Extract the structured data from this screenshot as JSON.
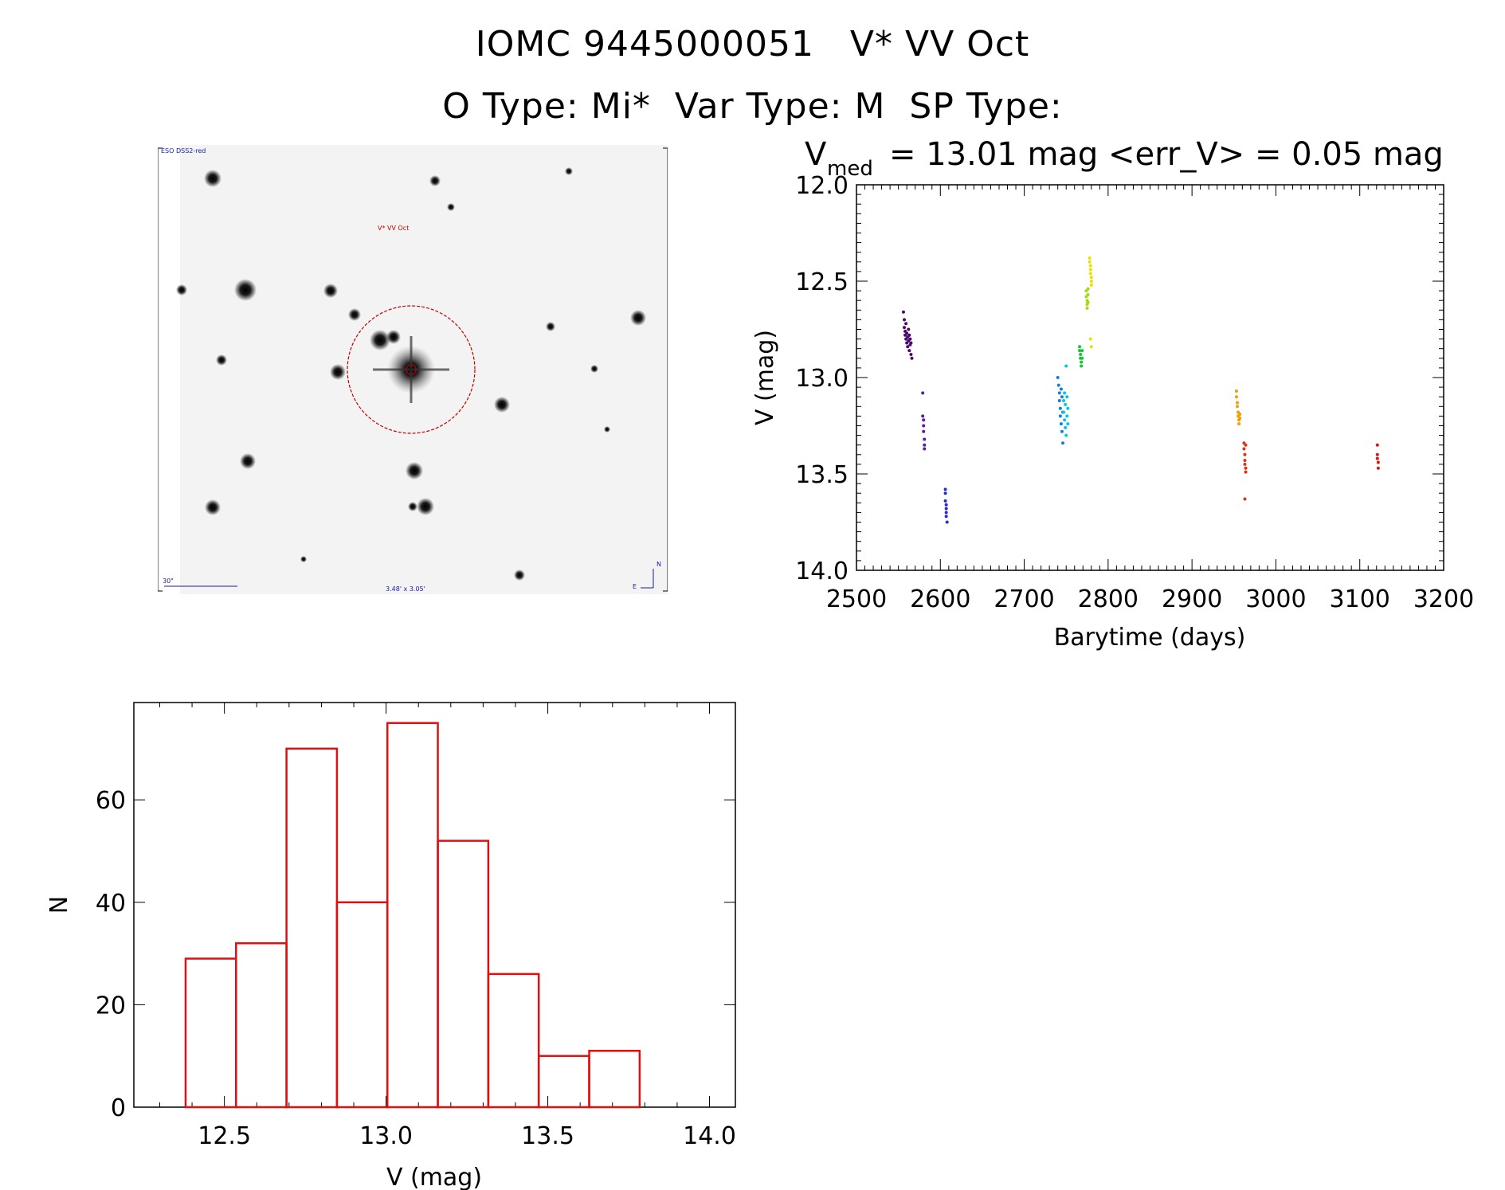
{
  "header": {
    "line1": "IOMC 9445000051   V* VV Oct",
    "line2": "O Type: Mi*  Var Type: M  SP Type:"
  },
  "finder_chart": {
    "survey_label": "ESO DSS2-red",
    "target_label": "V* VV Oct",
    "scale_label": "30\"",
    "fov_label": "3.48' x 3.05'",
    "north_label": "N",
    "east_label": "E",
    "target_circle_color": "#c00000",
    "label_color": "#1a1aa0"
  },
  "stats_title": {
    "v_symbol": "V",
    "v_subscript": "med",
    "v_med_text": "= 13.01 mag <err_V> = 0.05 mag"
  },
  "chart_data": [
    {
      "type": "scatter",
      "name": "light-curve",
      "xlabel": "Barytime (days)",
      "ylabel": "V (mag)",
      "xlim": [
        2500,
        3200
      ],
      "ylim": [
        14.0,
        12.0
      ],
      "y_inverted": true,
      "xticks": [
        2500,
        2600,
        2700,
        2800,
        2900,
        3000,
        3100,
        3200
      ],
      "xtick_labels": [
        "2500",
        "2600",
        "2700",
        "2800",
        "2900",
        "3000",
        "3100",
        "3200"
      ],
      "yticks": [
        12.0,
        12.5,
        13.0,
        13.5,
        14.0
      ],
      "ytick_labels": [
        "12.0",
        "12.5",
        "13.0",
        "13.5",
        "14.0"
      ],
      "series": [
        {
          "name": "g1",
          "color": "#4b0a6e",
          "x": [
            2556,
            2557,
            2557,
            2558,
            2558,
            2559,
            2559,
            2560,
            2560,
            2561,
            2561,
            2562,
            2562,
            2563,
            2563,
            2564,
            2564,
            2565,
            2565,
            2566
          ],
          "y": [
            12.66,
            12.7,
            12.74,
            12.76,
            12.78,
            12.72,
            12.8,
            12.77,
            12.82,
            12.79,
            12.84,
            12.75,
            12.81,
            12.78,
            12.86,
            12.8,
            12.83,
            12.82,
            12.88,
            12.9
          ]
        },
        {
          "name": "g2",
          "color": "#5a1aa0",
          "x": [
            2579,
            2579,
            2580,
            2580,
            2580,
            2581,
            2581,
            2581
          ],
          "y": [
            13.08,
            13.2,
            13.22,
            13.25,
            13.28,
            13.32,
            13.35,
            13.37
          ]
        },
        {
          "name": "g3",
          "color": "#2a2ad0",
          "x": [
            2606,
            2606,
            2606,
            2607,
            2607,
            2607,
            2607,
            2608
          ],
          "y": [
            13.58,
            13.6,
            13.64,
            13.66,
            13.68,
            13.7,
            13.72,
            13.75
          ]
        },
        {
          "name": "g4",
          "color": "#1a7ae0",
          "x": [
            2740,
            2741,
            2742,
            2742,
            2743,
            2743,
            2744,
            2744,
            2745,
            2745,
            2746,
            2746
          ],
          "y": [
            13.0,
            13.04,
            13.08,
            13.12,
            13.16,
            13.2,
            13.24,
            13.06,
            13.28,
            13.1,
            13.34,
            13.18
          ]
        },
        {
          "name": "g5",
          "color": "#00c8e0",
          "x": [
            2747,
            2747,
            2748,
            2748,
            2749,
            2749,
            2750,
            2750,
            2751,
            2751,
            2752,
            2752
          ],
          "y": [
            13.12,
            13.18,
            13.08,
            13.22,
            13.14,
            13.26,
            12.94,
            13.3,
            13.1,
            13.2,
            13.16,
            13.24
          ]
        },
        {
          "name": "g6",
          "color": "#10c830",
          "x": [
            2766,
            2766,
            2767,
            2767,
            2768,
            2768,
            2769,
            2769
          ],
          "y": [
            12.84,
            12.86,
            12.88,
            12.9,
            12.92,
            12.94,
            12.86,
            12.9
          ]
        },
        {
          "name": "g7",
          "color": "#a0e000",
          "x": [
            2774,
            2774,
            2775,
            2775,
            2775,
            2776,
            2776,
            2776
          ],
          "y": [
            12.55,
            12.58,
            12.6,
            12.62,
            12.64,
            12.54,
            12.57,
            12.61
          ]
        },
        {
          "name": "g8",
          "color": "#e8e000",
          "x": [
            2778,
            2778,
            2779,
            2779,
            2779,
            2780,
            2780,
            2780,
            2779,
            2780
          ],
          "y": [
            12.38,
            12.4,
            12.42,
            12.44,
            12.46,
            12.48,
            12.5,
            12.52,
            12.8,
            12.84
          ]
        },
        {
          "name": "g9",
          "color": "#f0a000",
          "x": [
            2953,
            2953,
            2954,
            2954,
            2955,
            2955,
            2956,
            2956,
            2957,
            2957
          ],
          "y": [
            13.07,
            13.1,
            13.13,
            13.15,
            13.18,
            13.2,
            13.22,
            13.24,
            13.19,
            13.21
          ]
        },
        {
          "name": "g10",
          "color": "#e83010",
          "x": [
            2962,
            2962,
            2963,
            2963,
            2963,
            2964,
            2964,
            2964,
            2963
          ],
          "y": [
            13.34,
            13.37,
            13.4,
            13.43,
            13.45,
            13.47,
            13.49,
            13.35,
            13.63
          ]
        },
        {
          "name": "g11",
          "color": "#e81010",
          "x": [
            3121,
            3121,
            3122,
            3122,
            3121
          ],
          "y": [
            13.35,
            13.4,
            13.44,
            13.47,
            13.42
          ]
        }
      ]
    },
    {
      "type": "bar",
      "name": "histogram",
      "xlabel": "V (mag)",
      "ylabel": "N",
      "xlim": [
        12.22,
        14.08
      ],
      "ylim": [
        0,
        79
      ],
      "xticks": [
        12.5,
        13.0,
        13.5,
        14.0
      ],
      "xtick_labels": [
        "12.5",
        "13.0",
        "13.5",
        "14.0"
      ],
      "yticks": [
        0,
        20,
        40,
        60
      ],
      "ytick_labels": [
        "0",
        "20",
        "40",
        "60"
      ],
      "bar_color": "#e01010",
      "bin_edges": [
        12.38,
        12.536,
        12.692,
        12.848,
        13.004,
        13.16,
        13.316,
        13.472,
        13.628,
        13.784
      ],
      "values": [
        29,
        32,
        70,
        40,
        75,
        52,
        26,
        10,
        11
      ]
    }
  ]
}
